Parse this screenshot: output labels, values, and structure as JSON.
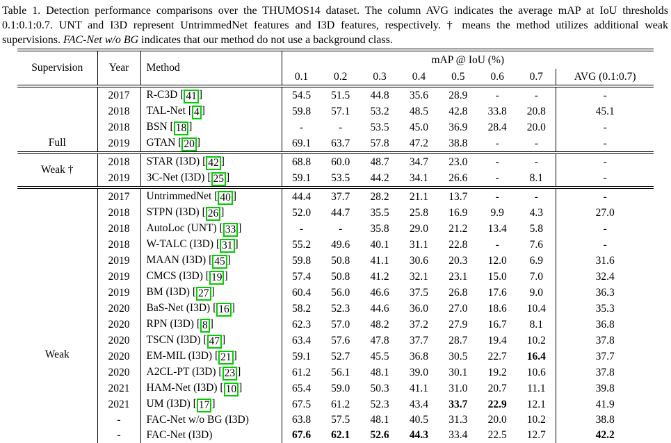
{
  "caption": {
    "segments": [
      {
        "text": "Table 1. Detection performance comparisons over the THUMOS14 dataset. The column AVG indicates the average mAP at IoU thresholds 0.1:0.1:0.7. UNT and I3D represent UntrimmedNet features and I3D features, respectively. † means the method utilizes additional weak supervisions. ",
        "style": "normal"
      },
      {
        "text": "FAC-Net w/o BG",
        "style": "italic"
      },
      {
        "text": " indicates that our method do not use a background class.",
        "style": "normal"
      }
    ]
  },
  "colors": {
    "citation_box": "#00cc00",
    "text": "#000000",
    "background": "#ffffff"
  },
  "table": {
    "header": {
      "supervision": "Supervision",
      "year": "Year",
      "method": "Method",
      "map_group": "mAP @ IoU (%)",
      "iou_cols": [
        "0.1",
        "0.2",
        "0.3",
        "0.4",
        "0.5",
        "0.6",
        "0.7"
      ],
      "avg": "AVG (0.1:0.7)"
    },
    "groups": [
      {
        "supervision": "Full",
        "label_position": "bottom",
        "rows": [
          {
            "year": "2017",
            "method": "R-C3D",
            "cite": "41",
            "iou": [
              "54.5",
              "51.5",
              "44.8",
              "35.6",
              "28.9",
              "-",
              "-"
            ],
            "avg": "-"
          },
          {
            "year": "2018",
            "method": "TAL-Net",
            "cite": "4",
            "iou": [
              "59.8",
              "57.1",
              "53.2",
              "48.5",
              "42.8",
              "33.8",
              "20.8"
            ],
            "avg": "45.1"
          },
          {
            "year": "2018",
            "method": "BSN",
            "cite": "18",
            "iou": [
              "-",
              "-",
              "53.5",
              "45.0",
              "36.9",
              "28.4",
              "20.0"
            ],
            "avg": "-"
          },
          {
            "year": "2019",
            "method": "GTAN",
            "cite": "20",
            "iou": [
              "69.1",
              "63.7",
              "57.8",
              "47.2",
              "38.8",
              "-",
              "-"
            ],
            "avg": "-"
          }
        ]
      },
      {
        "supervision": "Weak †",
        "label_position": "center",
        "rows": [
          {
            "year": "2018",
            "method": "STAR (I3D)",
            "cite": "42",
            "iou": [
              "68.8",
              "60.0",
              "48.7",
              "34.7",
              "23.0",
              "-",
              "-"
            ],
            "avg": "-"
          },
          {
            "year": "2019",
            "method": "3C-Net (I3D)",
            "cite": "25",
            "iou": [
              "59.1",
              "53.5",
              "44.2",
              "34.1",
              "26.6",
              "-",
              "8.1"
            ],
            "avg": "-"
          }
        ]
      },
      {
        "supervision": "Weak",
        "label_position": "offset",
        "rows": [
          {
            "year": "2017",
            "method": "UntrimmedNet",
            "cite": "40",
            "iou": [
              "44.4",
              "37.7",
              "28.2",
              "21.1",
              "13.7",
              "-",
              "-"
            ],
            "avg": "-"
          },
          {
            "year": "2018",
            "method": "STPN (I3D)",
            "cite": "26",
            "iou": [
              "52.0",
              "44.7",
              "35.5",
              "25.8",
              "16.9",
              "9.9",
              "4.3"
            ],
            "avg": "27.0"
          },
          {
            "year": "2018",
            "method": "AutoLoc (UNT)",
            "cite": "33",
            "iou": [
              "-",
              "-",
              "35.8",
              "29.0",
              "21.2",
              "13.4",
              "5.8"
            ],
            "avg": "-"
          },
          {
            "year": "2018",
            "method": "W-TALC (I3D)",
            "cite": "31",
            "iou": [
              "55.2",
              "49.6",
              "40.1",
              "31.1",
              "22.8",
              "-",
              "7.6"
            ],
            "avg": "-"
          },
          {
            "year": "2019",
            "method": "MAAN (I3D)",
            "cite": "45",
            "iou": [
              "59.8",
              "50.8",
              "41.1",
              "30.6",
              "20.3",
              "12.0",
              "6.9"
            ],
            "avg": "31.6"
          },
          {
            "year": "2019",
            "method": "CMCS (I3D)",
            "cite": "19",
            "iou": [
              "57.4",
              "50.8",
              "41.2",
              "32.1",
              "23.1",
              "15.0",
              "7.0"
            ],
            "avg": "32.4"
          },
          {
            "year": "2019",
            "method": "BM (I3D)",
            "cite": "27",
            "iou": [
              "60.4",
              "56.0",
              "46.6",
              "37.5",
              "26.8",
              "17.6",
              "9.0"
            ],
            "avg": "36.3"
          },
          {
            "year": "2020",
            "method": "BaS-Net (I3D)",
            "cite": "16",
            "iou": [
              "58.2",
              "52.3",
              "44.6",
              "36.0",
              "27.0",
              "18.6",
              "10.4"
            ],
            "avg": "35.3"
          },
          {
            "year": "2020",
            "method": "RPN (I3D)",
            "cite": "8",
            "iou": [
              "62.3",
              "57.0",
              "48.2",
              "37.2",
              "27.9",
              "16.7",
              "8.1"
            ],
            "avg": "36.8"
          },
          {
            "year": "2020",
            "method": "TSCN (I3D)",
            "cite": "47",
            "iou": [
              "63.4",
              "57.6",
              "47.8",
              "37.7",
              "28.7",
              "19.4",
              "10.2"
            ],
            "avg": "37.8"
          },
          {
            "year": "2020",
            "method": "EM-MIL (I3D)",
            "cite": "21",
            "iou": [
              "59.1",
              "52.7",
              "45.5",
              "36.8",
              "30.5",
              "22.7",
              "16.4"
            ],
            "bold_iou": [
              6
            ],
            "avg": "37.7"
          },
          {
            "year": "2020",
            "method": "A2CL-PT (I3D)",
            "cite": "23",
            "iou": [
              "61.2",
              "56.1",
              "48.1",
              "39.0",
              "30.1",
              "19.2",
              "10.6"
            ],
            "avg": "37.8"
          },
          {
            "year": "2021",
            "method": "HAM-Net (I3D)",
            "cite": "10",
            "iou": [
              "65.4",
              "59.0",
              "50.3",
              "41.1",
              "31.0",
              "20.7",
              "11.1"
            ],
            "avg": "39.8"
          },
          {
            "year": "2021",
            "method": "UM (I3D)",
            "cite": "17",
            "iou": [
              "67.5",
              "61.2",
              "52.3",
              "43.4",
              "33.7",
              "22.9",
              "12.1"
            ],
            "bold_iou": [
              4,
              5
            ],
            "avg": "41.9"
          },
          {
            "year": "-",
            "method": "FAC-Net w/o BG (I3D)",
            "cite": null,
            "iou": [
              "63.8",
              "57.5",
              "48.1",
              "40.5",
              "31.3",
              "20.0",
              "10.2"
            ],
            "avg": "38.8"
          },
          {
            "year": "-",
            "method": "FAC-Net (I3D)",
            "cite": null,
            "iou": [
              "67.6",
              "62.1",
              "52.6",
              "44.3",
              "33.4",
              "22.5",
              "12.7"
            ],
            "bold_iou": [
              0,
              1,
              2,
              3
            ],
            "avg": "42.2",
            "avg_bold": true
          }
        ]
      }
    ]
  }
}
